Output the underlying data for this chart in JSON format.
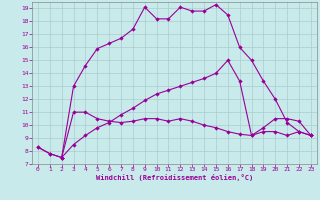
{
  "title": "",
  "xlabel": "Windchill (Refroidissement éolien,°C)",
  "bg_color": "#c8eaea",
  "line_color": "#990099",
  "grid_color": "#aacccc",
  "xlim": [
    -0.5,
    23.5
  ],
  "ylim": [
    7,
    19.5
  ],
  "yticks": [
    7,
    8,
    9,
    10,
    11,
    12,
    13,
    14,
    15,
    16,
    17,
    18,
    19
  ],
  "xticks": [
    0,
    1,
    2,
    3,
    4,
    5,
    6,
    7,
    8,
    9,
    10,
    11,
    12,
    13,
    14,
    15,
    16,
    17,
    18,
    19,
    20,
    21,
    22,
    23
  ],
  "line1_x": [
    0,
    1,
    2,
    3,
    4,
    5,
    6,
    7,
    8,
    9,
    10,
    11,
    12,
    13,
    14,
    15,
    16,
    17,
    18,
    19,
    20,
    21,
    22,
    23
  ],
  "line1_y": [
    8.3,
    7.8,
    7.5,
    13.0,
    14.6,
    15.9,
    16.3,
    16.7,
    17.4,
    19.1,
    18.2,
    18.2,
    19.1,
    18.8,
    18.8,
    19.3,
    18.5,
    16.0,
    15.0,
    13.4,
    12.0,
    10.2,
    9.5,
    9.2
  ],
  "line2_x": [
    0,
    1,
    2,
    3,
    4,
    5,
    6,
    7,
    8,
    9,
    10,
    11,
    12,
    13,
    14,
    15,
    16,
    17,
    18,
    19,
    20,
    21,
    22,
    23
  ],
  "line2_y": [
    8.3,
    7.8,
    7.5,
    11.0,
    11.0,
    10.5,
    10.3,
    10.2,
    10.3,
    10.5,
    10.5,
    10.3,
    10.5,
    10.3,
    10.0,
    9.8,
    9.5,
    9.3,
    9.2,
    9.5,
    9.5,
    9.2,
    9.5,
    9.2
  ],
  "line3_x": [
    2,
    3,
    4,
    5,
    6,
    7,
    8,
    9,
    10,
    11,
    12,
    13,
    14,
    15,
    16,
    17,
    18,
    19,
    20,
    21,
    22,
    23
  ],
  "line3_y": [
    7.5,
    8.5,
    9.2,
    9.8,
    10.2,
    10.8,
    11.3,
    11.9,
    12.4,
    12.7,
    13.0,
    13.3,
    13.6,
    14.0,
    15.0,
    13.4,
    9.2,
    9.8,
    10.5,
    10.5,
    10.3,
    9.2
  ]
}
